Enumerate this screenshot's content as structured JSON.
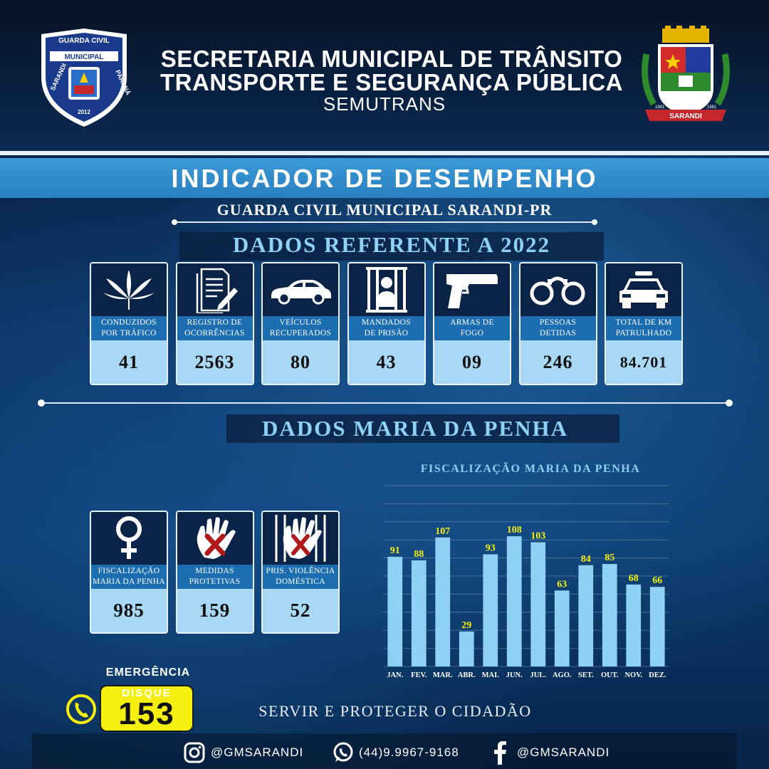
{
  "header": {
    "title_line1": "SECRETARIA MUNICIPAL DE TRÂNSITO",
    "title_line2": "TRANSPORTE E SEGURANÇA PÚBLICA",
    "subtitle": "SEMUTRANS",
    "logo_left": {
      "top": "GUARDA CIVIL",
      "mid": "MUNICIPAL",
      "left_side": "SARANDI",
      "right_side": "PARANÁ",
      "year": "2012"
    },
    "logo_right": {
      "banner": "SARANDI",
      "year_left": "1981",
      "year_right": "1981"
    }
  },
  "banner": {
    "title": "INDICADOR DE DESEMPENHO"
  },
  "gcm_title": "GUARDA CIVIL MUNICIPAL SARANDI-PR",
  "section1": {
    "heading": "DADOS REFERENTE A 2022",
    "cards": [
      {
        "label1": "CONDUZIDOS",
        "label2": "POR TRÁFICO",
        "value": "41",
        "icon": "cannabis-leaf-icon"
      },
      {
        "label1": "REGISTRO DE",
        "label2": "OCORRÊNCIAS",
        "value": "2563",
        "icon": "document-pen-icon"
      },
      {
        "label1": "VEÍCULOS",
        "label2": "RECUPERADOS",
        "value": "80",
        "icon": "car-icon"
      },
      {
        "label1": "MANDADOS",
        "label2": "DE PRISÃO",
        "value": "43",
        "icon": "prisoner-icon"
      },
      {
        "label1": "ARMAS DE",
        "label2": "FOGO",
        "value": "09",
        "icon": "pistol-icon"
      },
      {
        "label1": "PESSOAS",
        "label2": "DETIDAS",
        "value": "246",
        "icon": "handcuffs-icon"
      },
      {
        "label1": "TOTAL DE KM",
        "label2": "PATRULHADO",
        "value": "84.701",
        "icon": "police-car-icon"
      }
    ]
  },
  "section2": {
    "heading": "DADOS MARIA DA PENHA",
    "cards": [
      {
        "label1": "FISCALIZAÇÃO",
        "label2": "MARIA DA PENHA",
        "value": "985",
        "icon": "female-symbol-icon"
      },
      {
        "label1": "MEDIDAS",
        "label2": "PROTETIVAS",
        "value": "159",
        "icon": "stop-hand-icon"
      },
      {
        "label1": "PRIS. VIOLÊNCIA",
        "label2": "DOMÉSTICA",
        "value": "52",
        "icon": "hand-behind-bars-icon"
      }
    ]
  },
  "chart_data": {
    "type": "bar",
    "title": "FISCALIZAÇÃO MARIA DA PENHA",
    "categories": [
      "JAN.",
      "FEV.",
      "MAR.",
      "ABR.",
      "MAI.",
      "JUN.",
      "JUL.",
      "AGO.",
      "SET.",
      "OUT.",
      "NOV.",
      "DEZ."
    ],
    "values": [
      91,
      88,
      107,
      29,
      93,
      108,
      103,
      63,
      84,
      85,
      68,
      66
    ],
    "ylim": [
      0,
      150
    ],
    "grid": true,
    "bar_color": "#8fd0f5",
    "label_color": "#f5ef10"
  },
  "footer": {
    "emergency": "EMERGÊNCIA",
    "disque": "DISQUE",
    "number": "153",
    "slogan": "SERVIR E PROTEGER O CIDADÃO",
    "instagram": "@GMSARANDI",
    "whatsapp": "(44)9.9967-9168",
    "facebook": "@GMSARANDI"
  },
  "colors": {
    "accent": "#8fd0f5",
    "banner": "#2a7fc0",
    "label_bg": "#1d6eb0",
    "value_bg": "#a8d8f4",
    "yellow": "#f5ef10"
  }
}
